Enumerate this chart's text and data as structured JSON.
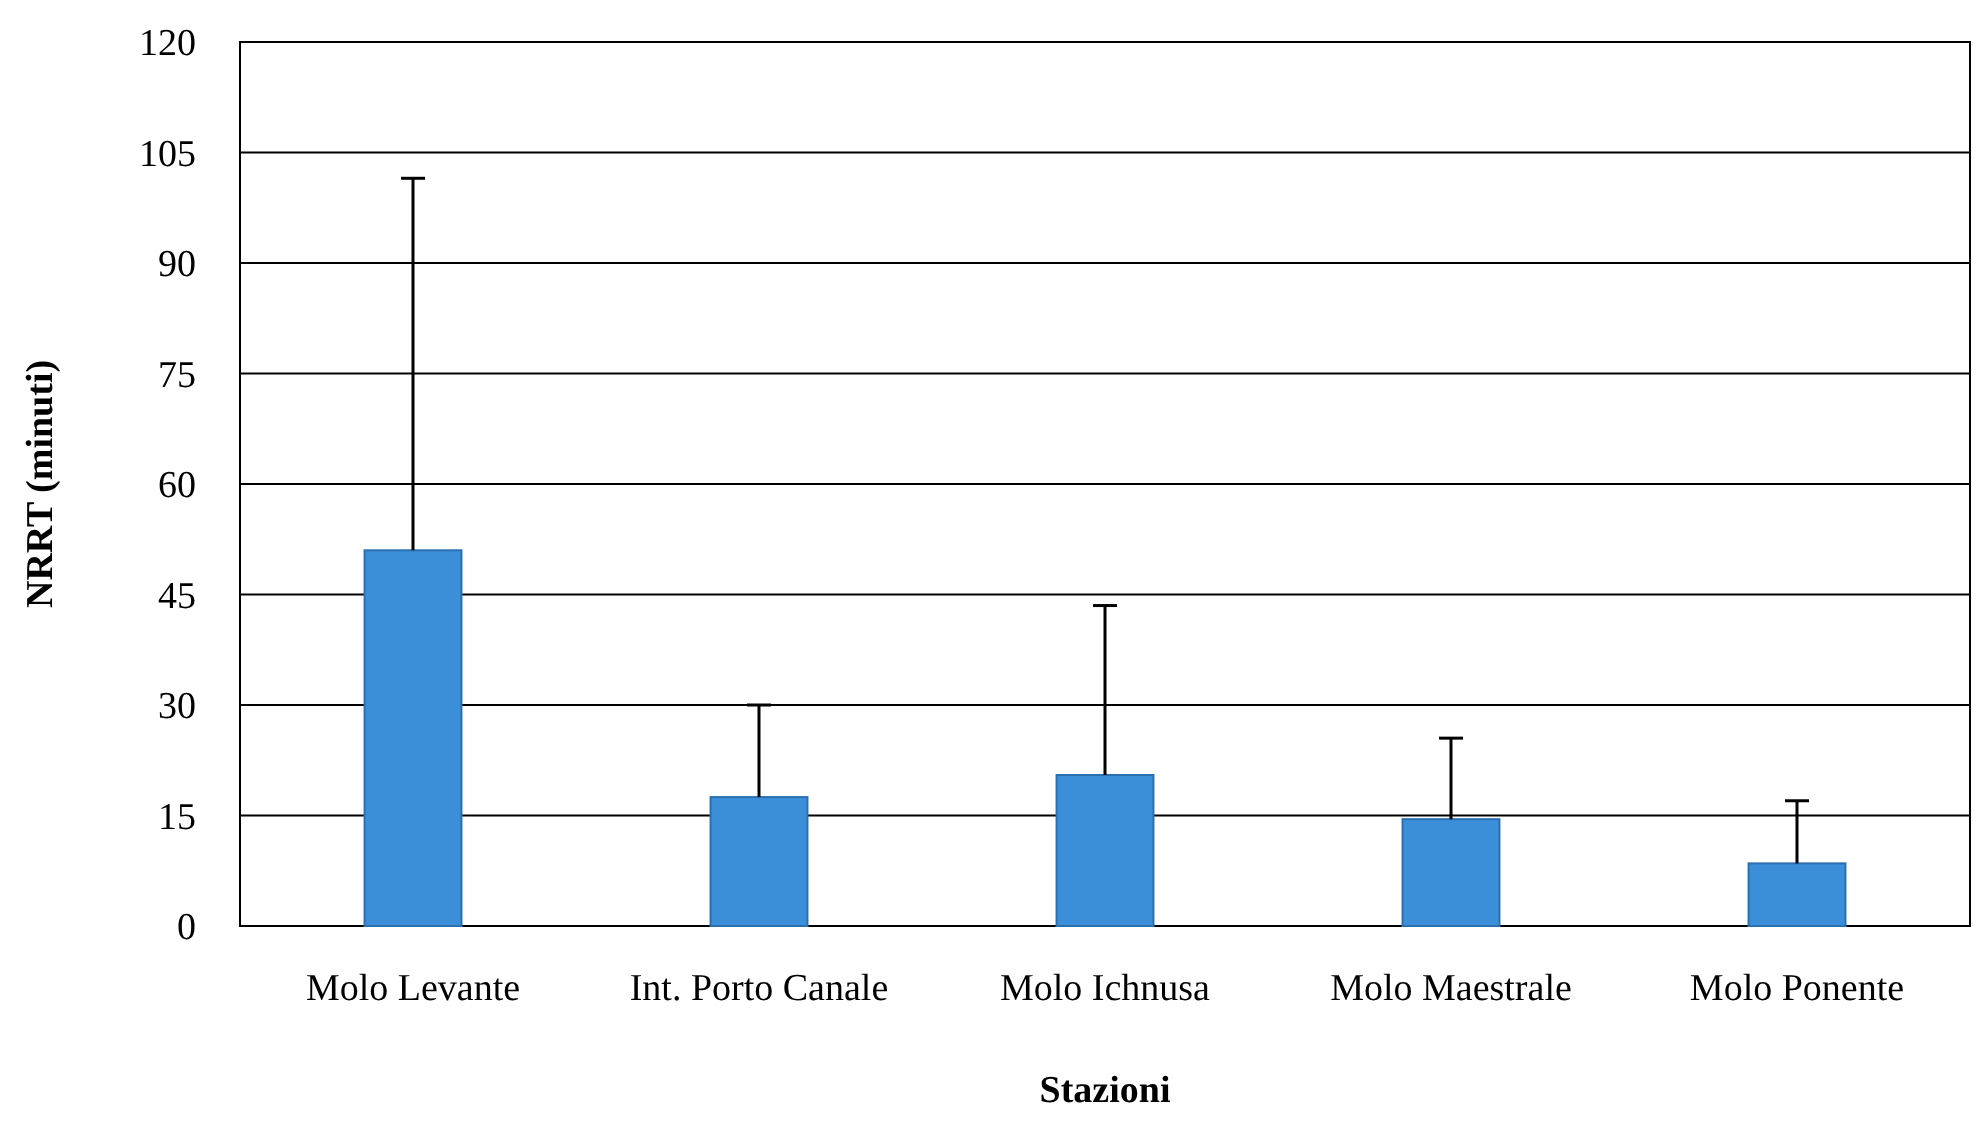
{
  "chart_data": {
    "type": "bar",
    "xlabel": "Stazioni",
    "ylabel": "NRRT (minuti)",
    "categories": [
      "Molo Levante",
      "Int. Porto Canale",
      "Molo Ichnusa",
      "Molo Maestrale",
      "Molo Ponente"
    ],
    "values": [
      51,
      17.5,
      20.5,
      14.5,
      8.5
    ],
    "errors": [
      [
        51,
        101.5
      ],
      [
        17.5,
        30
      ],
      [
        20.5,
        43.5
      ],
      [
        14.5,
        25.5
      ],
      [
        8.5,
        17
      ]
    ],
    "color": "#3b8fd9",
    "ylim": [
      0,
      120
    ],
    "yticks": [
      0,
      15,
      30,
      45,
      60,
      75,
      90,
      105,
      120
    ],
    "grid": "y"
  }
}
